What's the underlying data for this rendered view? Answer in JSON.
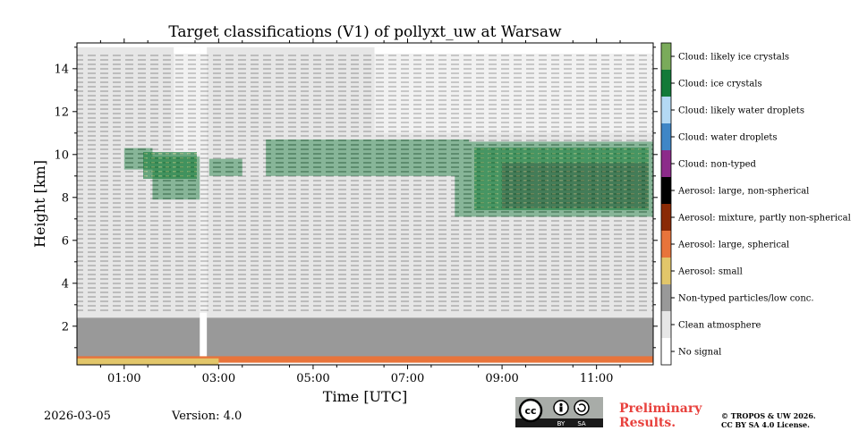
{
  "chart_data": {
    "type": "heatmap",
    "title": "Target classifications (V1) of pollyxt_uw at Warsaw",
    "xlabel": "Time [UTC]",
    "ylabel": "Height [km]",
    "xlim": [
      0.0,
      12.2
    ],
    "ylim": [
      0.2,
      15.2
    ],
    "x_ticks": [
      {
        "value": 1,
        "label": "01:00"
      },
      {
        "value": 3,
        "label": "03:00"
      },
      {
        "value": 5,
        "label": "05:00"
      },
      {
        "value": 7,
        "label": "07:00"
      },
      {
        "value": 9,
        "label": "09:00"
      },
      {
        "value": 11,
        "label": "11:00"
      }
    ],
    "y_ticks": [
      {
        "value": 2,
        "label": "2"
      },
      {
        "value": 4,
        "label": "4"
      },
      {
        "value": 6,
        "label": "6"
      },
      {
        "value": 8,
        "label": "8"
      },
      {
        "value": 10,
        "label": "10"
      },
      {
        "value": 12,
        "label": "12"
      },
      {
        "value": 14,
        "label": "14"
      }
    ],
    "legend": [
      {
        "label": "Cloud: likely ice crystals",
        "color": "#7aab5a"
      },
      {
        "label": "Cloud: ice crystals",
        "color": "#137a38"
      },
      {
        "label": "Cloud: likely water droplets",
        "color": "#b3d9f4"
      },
      {
        "label": "Cloud: water droplets",
        "color": "#3f86c6"
      },
      {
        "label": "Cloud: non-typed",
        "color": "#8c2b8a"
      },
      {
        "label": "Aerosol: large, non-spherical",
        "color": "#000000"
      },
      {
        "label": "Aerosol: mixture, partly non-spherical",
        "color": "#8a2a06"
      },
      {
        "label": "Aerosol: large, spherical",
        "color": "#e8743b"
      },
      {
        "label": "Aerosol: small",
        "color": "#e2c66a"
      },
      {
        "label": "Non-typed particles/low conc.",
        "color": "#999999"
      },
      {
        "label": "Clean atmosphere",
        "color": "#e6e6e6"
      },
      {
        "label": "No signal",
        "color": "#ffffff"
      }
    ],
    "regions": [
      {
        "class": "Non-typed particles/low conc.",
        "t": [
          0.0,
          12.2
        ],
        "h": [
          0.5,
          2.4
        ]
      },
      {
        "class": "Clean atmosphere",
        "t": [
          0.0,
          12.2
        ],
        "h": [
          2.4,
          15.0
        ]
      },
      {
        "class": "No signal",
        "t": [
          2.05,
          2.6
        ],
        "h": [
          10.0,
          15.0
        ]
      },
      {
        "class": "No signal",
        "t": [
          2.6,
          2.75
        ],
        "h": [
          0.2,
          15.2
        ]
      },
      {
        "class": "No signal",
        "t": [
          6.3,
          12.2
        ],
        "h": [
          11.0,
          15.0
        ]
      },
      {
        "class": "Cloud: ice crystals",
        "t": [
          1.0,
          1.6
        ],
        "h": [
          9.3,
          10.3
        ]
      },
      {
        "class": "Cloud: ice crystals",
        "t": [
          1.6,
          2.6
        ],
        "h": [
          7.9,
          9.9
        ]
      },
      {
        "class": "Cloud: ice crystals",
        "t": [
          2.8,
          3.5
        ],
        "h": [
          9.0,
          9.8
        ]
      },
      {
        "class": "Cloud: ice crystals",
        "t": [
          4.0,
          8.3
        ],
        "h": [
          9.0,
          10.7
        ]
      },
      {
        "class": "Cloud: ice crystals",
        "t": [
          8.0,
          12.2
        ],
        "h": [
          7.1,
          10.6
        ]
      },
      {
        "class": "Aerosol: large, non-spherical",
        "t": [
          9.0,
          12.1
        ],
        "h": [
          7.5,
          9.6
        ]
      },
      {
        "class": "Aerosol: large, spherical",
        "t": [
          0.0,
          12.2
        ],
        "h": [
          0.3,
          0.6
        ]
      },
      {
        "class": "Aerosol: small",
        "t": [
          0.0,
          3.0
        ],
        "h": [
          0.2,
          0.5
        ]
      }
    ]
  },
  "footer": {
    "date": "2026-03-05",
    "version": "Version: 4.0",
    "preliminary": "Preliminary Results.",
    "copyright_line1": "© TROPOS & UW 2026.",
    "copyright_line2": "CC BY SA 4.0 License.",
    "cc_label": "cc",
    "by_label": "BY",
    "sa_label": "SA"
  }
}
